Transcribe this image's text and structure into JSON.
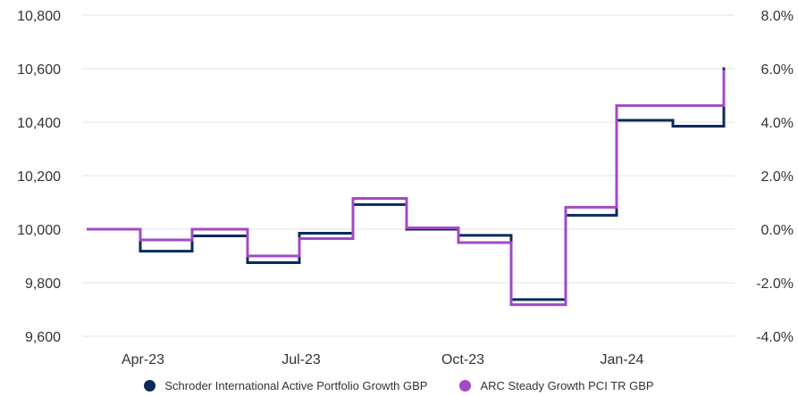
{
  "chart_data": {
    "type": "line",
    "step": true,
    "x_tick_labels": [
      "Apr-23",
      "Jul-23",
      "Oct-23",
      "Jan-24"
    ],
    "left_axis": {
      "ticks": [
        "10,800",
        "10,600",
        "10,400",
        "10,200",
        "10,000",
        "9,800",
        "9,600"
      ],
      "range": [
        9600,
        10800
      ]
    },
    "right_axis": {
      "ticks": [
        "8.0%",
        "6.0%",
        "4.0%",
        "2.0%",
        "0.0%",
        "-2.0%",
        "-4.0%"
      ],
      "range": [
        -4.0,
        8.0
      ]
    },
    "grid": true,
    "legend_position": "bottom",
    "series": [
      {
        "name": "Schroder International Active Portfolio Growth GBP",
        "color": "#0b2a5b",
        "steps": [
          {
            "from": "2023-02",
            "to": "2023-03",
            "value": 10000
          },
          {
            "from": "2023-03",
            "to": "2023-04",
            "value": 9918
          },
          {
            "from": "2023-04",
            "to": "2023-05",
            "value": 9975
          },
          {
            "from": "2023-05",
            "to": "2023-06",
            "value": 9875
          },
          {
            "from": "2023-06",
            "to": "2023-07",
            "value": 9985
          },
          {
            "from": "2023-07",
            "to": "2023-08",
            "value": 10092
          },
          {
            "from": "2023-08",
            "to": "2023-09",
            "value": 10000
          },
          {
            "from": "2023-09",
            "to": "2023-10",
            "value": 9977
          },
          {
            "from": "2023-10",
            "to": "2023-11",
            "value": 9737
          },
          {
            "from": "2023-11",
            "to": "2023-12",
            "value": 10052
          },
          {
            "from": "2023-12",
            "to": "2024-01",
            "value": 10407
          },
          {
            "from": "2024-01",
            "to": "2024-02",
            "value": 10385
          },
          {
            "from": "2024-02",
            "to": "2024-02",
            "value": 10605
          }
        ]
      },
      {
        "name": "ARC Steady Growth PCI TR GBP",
        "color": "#a349c4",
        "steps": [
          {
            "from": "2023-02",
            "to": "2023-03",
            "value": 10000
          },
          {
            "from": "2023-03",
            "to": "2023-04",
            "value": 9960
          },
          {
            "from": "2023-04",
            "to": "2023-05",
            "value": 10000
          },
          {
            "from": "2023-05",
            "to": "2023-06",
            "value": 9900
          },
          {
            "from": "2023-06",
            "to": "2023-07",
            "value": 9965
          },
          {
            "from": "2023-07",
            "to": "2023-08",
            "value": 10115
          },
          {
            "from": "2023-08",
            "to": "2023-09",
            "value": 10005
          },
          {
            "from": "2023-09",
            "to": "2023-10",
            "value": 9950
          },
          {
            "from": "2023-10",
            "to": "2023-11",
            "value": 9718
          },
          {
            "from": "2023-11",
            "to": "2023-12",
            "value": 10082
          },
          {
            "from": "2023-12",
            "to": "2024-01",
            "value": 10462
          },
          {
            "from": "2024-01",
            "to": "2024-02",
            "value": 10462
          },
          {
            "from": "2024-02",
            "to": "2024-02",
            "value": 10595
          }
        ]
      }
    ]
  }
}
